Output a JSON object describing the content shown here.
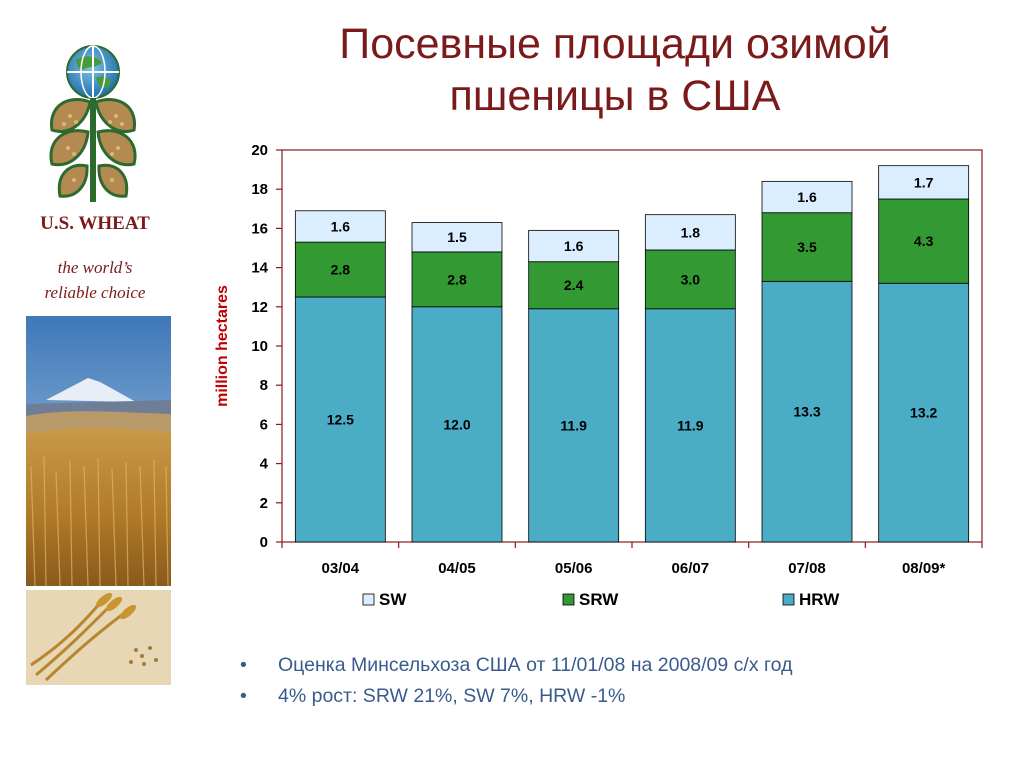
{
  "title_line1": "Посевные площади озимой",
  "title_line2": "пшеницы в США",
  "brand": {
    "name": "U.S. WHEAT",
    "tagline_line1": "the world’s",
    "tagline_line2": "reliable choice"
  },
  "bullets": [
    "Оценка Минсельхоза США от 11/01/08 на 2008/09 с/х год",
    "4% рост: SRW 21%, SW 7%, HRW -1%"
  ],
  "colors": {
    "title": "#7a1a1a",
    "HRW": "#4bacc6",
    "SRW": "#339933",
    "SW": "#dbeeff",
    "axis": "#8b1a1a",
    "bullets": "#3a5b8c"
  },
  "chart_data": {
    "type": "bar",
    "stacked": true,
    "categories": [
      "03/04",
      "04/05",
      "05/06",
      "06/07",
      "07/08",
      "08/09*"
    ],
    "series": [
      {
        "name": "HRW",
        "values": [
          12.5,
          12.0,
          11.9,
          11.9,
          13.3,
          13.2
        ],
        "labels": [
          "12.5",
          "12.0",
          "11.9",
          "11.9",
          "13.3",
          "13.2"
        ]
      },
      {
        "name": "SRW",
        "values": [
          2.8,
          2.8,
          2.4,
          3.0,
          3.5,
          4.3
        ],
        "labels": [
          "2.8",
          "2.8",
          "2.4",
          "3.0",
          "3.5",
          "4.3"
        ]
      },
      {
        "name": "SW",
        "values": [
          1.6,
          1.5,
          1.6,
          1.8,
          1.6,
          1.7
        ],
        "labels": [
          "1.6",
          "1.5",
          "1.6",
          "1.8",
          "1.6",
          "1.7"
        ]
      }
    ],
    "legend_order": [
      "SW",
      "SRW",
      "HRW"
    ],
    "legend_position": "bottom",
    "ylabel": "million hectares",
    "xlabel": "",
    "ylim": [
      0,
      20
    ],
    "yticks": [
      "0",
      "2",
      "4",
      "6",
      "8",
      "10",
      "12",
      "14",
      "16",
      "18",
      "20"
    ],
    "grid": false
  }
}
